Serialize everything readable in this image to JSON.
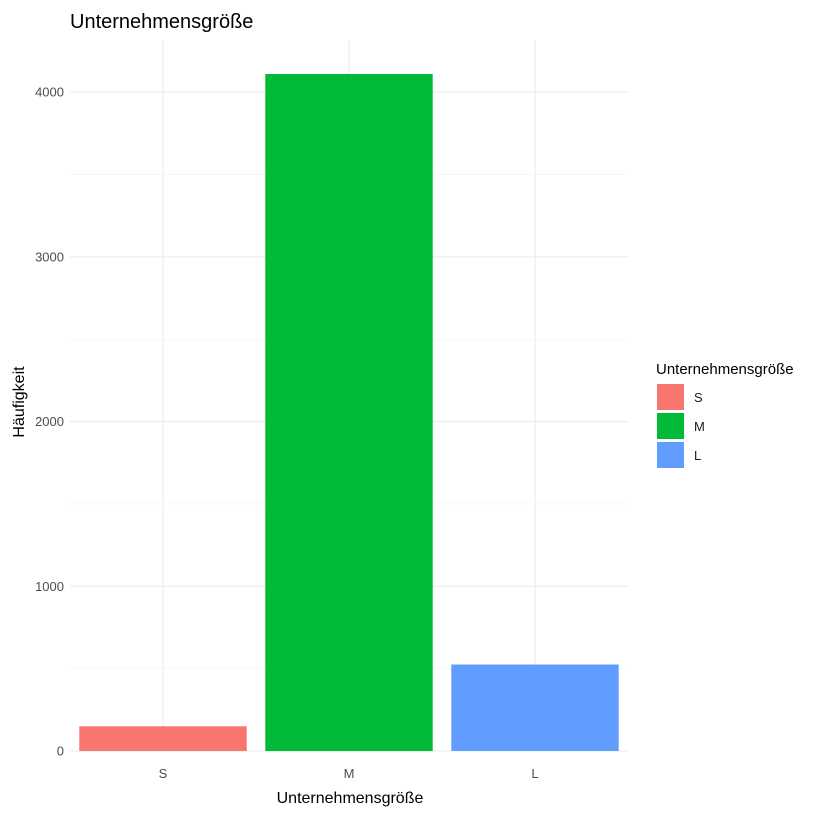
{
  "chart_data": {
    "type": "bar",
    "title": "Unternehmensgröße",
    "xlabel": "Unternehmensgröße",
    "ylabel": "Häufigkeit",
    "categories": [
      "S",
      "M",
      "L"
    ],
    "values": [
      150,
      4110,
      525
    ],
    "colors": [
      "#F8766D",
      "#00BA38",
      "#619CFF"
    ],
    "ylim": [
      0,
      4110
    ],
    "yticks": [
      0,
      1000,
      2000,
      3000,
      4000
    ],
    "ytick_labels": [
      "0",
      "1000",
      "2000",
      "3000",
      "4000"
    ],
    "grid": true,
    "legend": {
      "title": "Unternehmensgröße",
      "position": "right",
      "entries": [
        "S",
        "M",
        "L"
      ]
    }
  }
}
